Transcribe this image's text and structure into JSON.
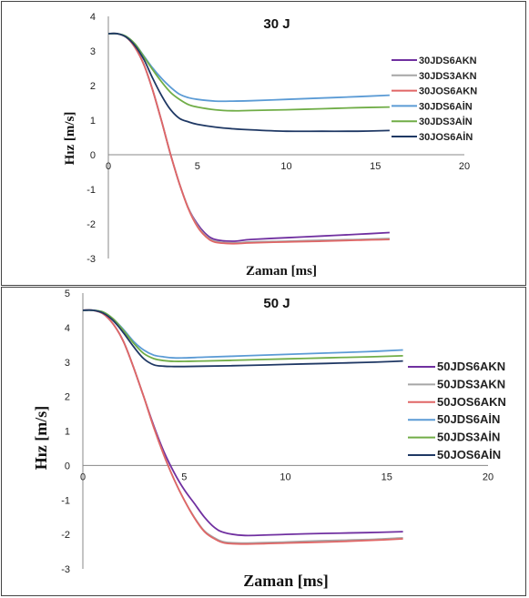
{
  "chart_data": [
    {
      "type": "line",
      "title": "30 J",
      "xlabel": "Zaman  [ms]",
      "ylabel": "Hız [m/s]",
      "xlim": [
        0,
        20
      ],
      "ylim": [
        -3,
        4
      ],
      "xticks": [
        "0",
        "5",
        "10",
        "15",
        "20"
      ],
      "yticks": [
        "-3",
        "-2",
        "-1",
        "0",
        "1",
        "2",
        "3",
        "4"
      ],
      "grid": false,
      "legend": "right",
      "series": [
        {
          "name": "30JDS6AKN",
          "color": "#7030a0",
          "x": [
            0,
            0.5,
            1,
            1.5,
            2,
            2.5,
            3,
            3.5,
            4,
            4.5,
            5,
            5.5,
            6,
            7,
            8,
            10,
            12,
            14,
            15.8
          ],
          "y": [
            3.5,
            3.5,
            3.4,
            3.1,
            2.6,
            1.85,
            0.95,
            0.0,
            -0.85,
            -1.55,
            -2.0,
            -2.3,
            -2.45,
            -2.5,
            -2.45,
            -2.4,
            -2.35,
            -2.3,
            -2.25
          ]
        },
        {
          "name": "30JDS3AKN",
          "color": "#a6a6a6",
          "x": [
            0,
            0.5,
            1,
            1.5,
            2,
            2.5,
            3,
            3.5,
            4,
            4.5,
            5,
            5.5,
            6,
            7,
            8,
            10,
            12,
            14,
            15.8
          ],
          "y": [
            3.5,
            3.5,
            3.4,
            3.1,
            2.6,
            1.85,
            0.95,
            0.0,
            -0.85,
            -1.55,
            -2.05,
            -2.35,
            -2.5,
            -2.55,
            -2.52,
            -2.5,
            -2.47,
            -2.45,
            -2.42
          ]
        },
        {
          "name": "30JOS6AKN",
          "color": "#e06666",
          "x": [
            0,
            0.5,
            1,
            1.5,
            2,
            2.5,
            3,
            3.5,
            4,
            4.5,
            5,
            5.5,
            6,
            7,
            8,
            10,
            12,
            14,
            15.8
          ],
          "y": [
            3.5,
            3.5,
            3.4,
            3.1,
            2.6,
            1.85,
            0.95,
            0.0,
            -0.85,
            -1.57,
            -2.08,
            -2.38,
            -2.53,
            -2.57,
            -2.55,
            -2.52,
            -2.5,
            -2.47,
            -2.45
          ]
        },
        {
          "name": "30JDS6AİN",
          "color": "#5b9bd5",
          "x": [
            0,
            0.5,
            1,
            1.5,
            2,
            2.5,
            3,
            3.5,
            4,
            4.5,
            5,
            6,
            7,
            8,
            10,
            12,
            14,
            15.8
          ],
          "y": [
            3.5,
            3.5,
            3.42,
            3.2,
            2.85,
            2.5,
            2.2,
            1.95,
            1.75,
            1.65,
            1.6,
            1.55,
            1.55,
            1.56,
            1.6,
            1.64,
            1.68,
            1.72
          ]
        },
        {
          "name": "30JDS3AİN",
          "color": "#70ad47",
          "x": [
            0,
            0.5,
            1,
            1.5,
            2,
            2.5,
            3,
            3.5,
            4,
            4.5,
            5,
            6,
            7,
            8,
            10,
            12,
            14,
            15.8
          ],
          "y": [
            3.5,
            3.5,
            3.42,
            3.2,
            2.83,
            2.45,
            2.1,
            1.8,
            1.6,
            1.45,
            1.38,
            1.3,
            1.27,
            1.28,
            1.3,
            1.33,
            1.36,
            1.38
          ]
        },
        {
          "name": "30JOS6AİN",
          "color": "#1f3864",
          "x": [
            0,
            0.5,
            1,
            1.5,
            2,
            2.5,
            3,
            3.5,
            4,
            4.5,
            5,
            6,
            7,
            8,
            10,
            12,
            14,
            15.8
          ],
          "y": [
            3.5,
            3.5,
            3.4,
            3.15,
            2.75,
            2.2,
            1.7,
            1.3,
            1.05,
            0.95,
            0.88,
            0.8,
            0.75,
            0.72,
            0.68,
            0.68,
            0.68,
            0.7
          ]
        }
      ]
    },
    {
      "type": "line",
      "title": "50 J",
      "xlabel": "Zaman  [ms]",
      "ylabel": "Hız [m/s]",
      "xlim": [
        0,
        20
      ],
      "ylim": [
        -3,
        5
      ],
      "xticks": [
        "0",
        "5",
        "10",
        "15",
        "20"
      ],
      "yticks": [
        "-3",
        "-2",
        "-1",
        "0",
        "1",
        "2",
        "3",
        "4",
        "5"
      ],
      "grid": false,
      "legend": "right",
      "series": [
        {
          "name": "50JDS6AKN",
          "color": "#7030a0",
          "x": [
            0,
            0.5,
            1,
            1.5,
            2,
            2.5,
            3,
            3.5,
            4,
            4.5,
            5,
            5.5,
            6,
            6.5,
            7,
            8,
            10,
            12,
            14,
            15.8
          ],
          "y": [
            4.5,
            4.5,
            4.4,
            4.1,
            3.6,
            2.85,
            2.0,
            1.15,
            0.4,
            -0.2,
            -0.7,
            -1.1,
            -1.5,
            -1.8,
            -1.95,
            -2.03,
            -2.0,
            -1.97,
            -1.95,
            -1.92
          ]
        },
        {
          "name": "50JDS3AKN",
          "color": "#a6a6a6",
          "x": [
            0,
            0.5,
            1,
            1.5,
            2,
            2.5,
            3,
            3.5,
            4,
            4.5,
            5,
            5.5,
            6,
            6.5,
            7,
            8,
            10,
            12,
            14,
            15.8
          ],
          "y": [
            4.5,
            4.5,
            4.4,
            4.1,
            3.6,
            2.85,
            2.0,
            1.1,
            0.3,
            -0.4,
            -1.0,
            -1.5,
            -1.9,
            -2.1,
            -2.22,
            -2.25,
            -2.22,
            -2.18,
            -2.15,
            -2.1
          ]
        },
        {
          "name": "50JOS6AKN",
          "color": "#e06666",
          "x": [
            0,
            0.5,
            1,
            1.5,
            2,
            2.5,
            3,
            3.5,
            4,
            4.5,
            5,
            5.5,
            6,
            6.5,
            7,
            8,
            10,
            12,
            14,
            15.8
          ],
          "y": [
            4.5,
            4.5,
            4.4,
            4.1,
            3.6,
            2.85,
            2.0,
            1.1,
            0.3,
            -0.4,
            -1.0,
            -1.52,
            -1.92,
            -2.13,
            -2.25,
            -2.28,
            -2.25,
            -2.22,
            -2.18,
            -2.13
          ]
        },
        {
          "name": "50JDS6AİN",
          "color": "#5b9bd5",
          "x": [
            0,
            0.5,
            1,
            1.5,
            2,
            2.5,
            3,
            3.5,
            4,
            4.5,
            5,
            6,
            8,
            10,
            12,
            14,
            15.8
          ],
          "y": [
            4.5,
            4.5,
            4.45,
            4.25,
            3.95,
            3.6,
            3.35,
            3.2,
            3.15,
            3.12,
            3.12,
            3.14,
            3.18,
            3.22,
            3.26,
            3.3,
            3.35
          ]
        },
        {
          "name": "50JDS3AİN",
          "color": "#70ad47",
          "x": [
            0,
            0.5,
            1,
            1.5,
            2,
            2.5,
            3,
            3.5,
            4,
            4.5,
            5,
            6,
            8,
            10,
            12,
            14,
            15.8
          ],
          "y": [
            4.5,
            4.5,
            4.45,
            4.25,
            3.92,
            3.55,
            3.25,
            3.1,
            3.04,
            3.02,
            3.02,
            3.03,
            3.06,
            3.09,
            3.12,
            3.15,
            3.18
          ]
        },
        {
          "name": "50JOS6AİN",
          "color": "#1f3864",
          "x": [
            0,
            0.5,
            1,
            1.5,
            2,
            2.5,
            3,
            3.5,
            4,
            4.5,
            5,
            6,
            8,
            10,
            12,
            14,
            15.8
          ],
          "y": [
            4.5,
            4.5,
            4.42,
            4.2,
            3.85,
            3.45,
            3.1,
            2.92,
            2.88,
            2.87,
            2.87,
            2.88,
            2.9,
            2.93,
            2.96,
            2.99,
            3.03
          ]
        }
      ]
    }
  ]
}
